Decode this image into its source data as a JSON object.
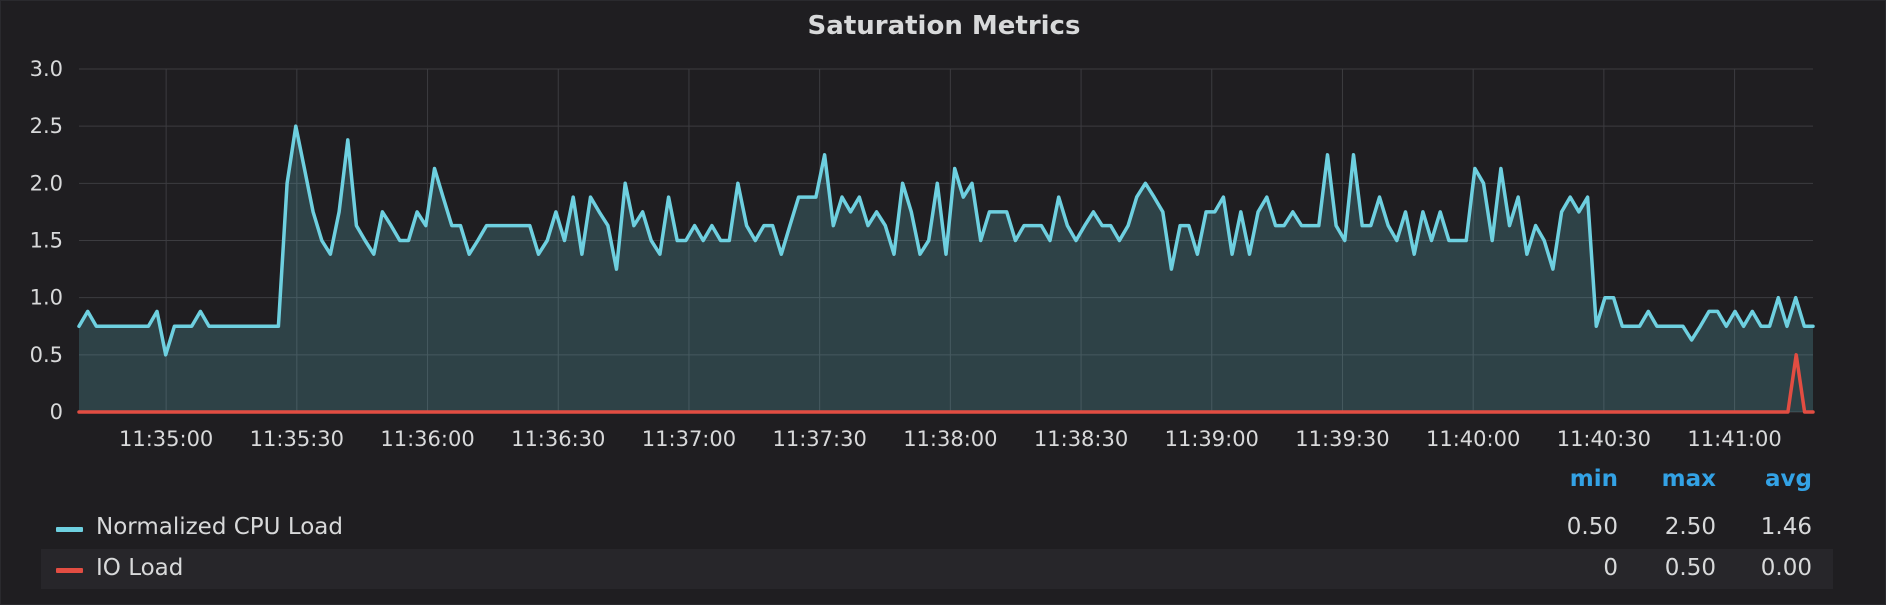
{
  "panel": {
    "title": "Saturation Metrics"
  },
  "legend": {
    "headers": {
      "min": "min",
      "max": "max",
      "avg": "avg"
    },
    "rows": [
      {
        "name": "Normalized CPU Load",
        "color": "#6ed0e0",
        "min": "0.50",
        "max": "2.50",
        "avg": "1.46"
      },
      {
        "name": "IO Load",
        "color": "#e24d42",
        "min": "0",
        "max": "0.50",
        "avg": "0.00"
      }
    ]
  },
  "chart_data": {
    "type": "area",
    "title": "Saturation Metrics",
    "x_start": "11:34:40",
    "x_end": "11:41:18",
    "x_tick_labels": [
      "11:35:00",
      "11:35:30",
      "11:36:00",
      "11:36:30",
      "11:37:00",
      "11:37:30",
      "11:38:00",
      "11:38:30",
      "11:39:00",
      "11:39:30",
      "11:40:00",
      "11:40:30",
      "11:41:00"
    ],
    "y_tick_labels": [
      "0",
      "0.5",
      "1.0",
      "1.5",
      "2.0",
      "2.5",
      "3.0"
    ],
    "ylim": [
      0,
      3
    ],
    "grid": true,
    "legend_placement": "bottom",
    "series": [
      {
        "name": "Normalized CPU Load",
        "color": "#6ed0e0",
        "fill": true,
        "values": [
          0.75,
          0.88,
          0.75,
          0.75,
          0.75,
          0.75,
          0.75,
          0.75,
          0.75,
          0.88,
          0.5,
          0.75,
          0.75,
          0.75,
          0.88,
          0.75,
          0.75,
          0.75,
          0.75,
          0.75,
          0.75,
          0.75,
          0.75,
          0.75,
          2.0,
          2.5,
          2.13,
          1.75,
          1.5,
          1.38,
          1.75,
          2.38,
          1.63,
          1.5,
          1.38,
          1.75,
          1.63,
          1.5,
          1.5,
          1.75,
          1.63,
          2.13,
          1.88,
          1.63,
          1.63,
          1.38,
          1.5,
          1.63,
          1.63,
          1.63,
          1.63,
          1.63,
          1.63,
          1.38,
          1.5,
          1.75,
          1.5,
          1.88,
          1.38,
          1.88,
          1.75,
          1.63,
          1.25,
          2.0,
          1.63,
          1.75,
          1.5,
          1.38,
          1.88,
          1.5,
          1.5,
          1.63,
          1.5,
          1.63,
          1.5,
          1.5,
          2.0,
          1.63,
          1.5,
          1.63,
          1.63,
          1.38,
          1.63,
          1.88,
          1.88,
          1.88,
          2.25,
          1.63,
          1.88,
          1.75,
          1.88,
          1.63,
          1.75,
          1.63,
          1.38,
          2.0,
          1.75,
          1.38,
          1.5,
          2.0,
          1.38,
          2.13,
          1.88,
          2.0,
          1.5,
          1.75,
          1.75,
          1.75,
          1.5,
          1.63,
          1.63,
          1.63,
          1.5,
          1.88,
          1.63,
          1.5,
          1.63,
          1.75,
          1.63,
          1.63,
          1.5,
          1.63,
          1.88,
          2.0,
          1.88,
          1.75,
          1.25,
          1.63,
          1.63,
          1.38,
          1.75,
          1.75,
          1.88,
          1.38,
          1.75,
          1.38,
          1.75,
          1.88,
          1.63,
          1.63,
          1.75,
          1.63,
          1.63,
          1.63,
          2.25,
          1.63,
          1.5,
          2.25,
          1.63,
          1.63,
          1.88,
          1.63,
          1.5,
          1.75,
          1.38,
          1.75,
          1.5,
          1.75,
          1.5,
          1.5,
          1.5,
          2.13,
          2.0,
          1.5,
          2.13,
          1.63,
          1.88,
          1.38,
          1.63,
          1.5,
          1.25,
          1.75,
          1.88,
          1.75,
          1.88,
          0.75,
          1.0,
          1.0,
          0.75,
          0.75,
          0.75,
          0.88,
          0.75,
          0.75,
          0.75,
          0.75,
          0.63,
          0.75,
          0.88,
          0.88,
          0.75,
          0.88,
          0.75,
          0.88,
          0.75,
          0.75,
          1.0,
          0.75,
          1.0,
          0.75,
          0.75
        ]
      },
      {
        "name": "IO Load",
        "color": "#e24d42",
        "fill": false,
        "values": [
          0,
          0,
          0,
          0,
          0,
          0,
          0,
          0,
          0,
          0,
          0,
          0,
          0,
          0,
          0,
          0,
          0,
          0,
          0,
          0,
          0,
          0,
          0,
          0,
          0,
          0,
          0,
          0,
          0,
          0,
          0,
          0,
          0,
          0,
          0,
          0,
          0,
          0,
          0,
          0,
          0,
          0,
          0,
          0,
          0,
          0,
          0,
          0,
          0,
          0,
          0,
          0,
          0,
          0,
          0,
          0,
          0,
          0,
          0,
          0,
          0,
          0,
          0,
          0,
          0,
          0,
          0,
          0,
          0,
          0,
          0,
          0,
          0,
          0,
          0,
          0,
          0,
          0,
          0,
          0,
          0,
          0,
          0,
          0,
          0,
          0,
          0,
          0,
          0,
          0,
          0,
          0,
          0,
          0,
          0,
          0,
          0,
          0,
          0,
          0,
          0,
          0,
          0,
          0,
          0,
          0,
          0,
          0,
          0,
          0,
          0,
          0,
          0,
          0,
          0,
          0,
          0,
          0,
          0,
          0,
          0,
          0,
          0,
          0,
          0,
          0,
          0,
          0,
          0,
          0,
          0,
          0,
          0,
          0,
          0,
          0,
          0,
          0,
          0,
          0,
          0,
          0,
          0,
          0,
          0,
          0,
          0,
          0,
          0,
          0,
          0,
          0,
          0,
          0,
          0,
          0,
          0,
          0,
          0,
          0,
          0,
          0,
          0,
          0,
          0,
          0,
          0,
          0,
          0,
          0,
          0,
          0,
          0,
          0,
          0,
          0,
          0,
          0,
          0,
          0,
          0,
          0,
          0,
          0,
          0,
          0,
          0,
          0,
          0,
          0,
          0,
          0,
          0,
          0,
          0,
          0,
          0,
          0,
          0,
          0,
          0,
          0,
          0,
          0,
          0,
          0.5,
          0,
          0
        ]
      }
    ]
  }
}
